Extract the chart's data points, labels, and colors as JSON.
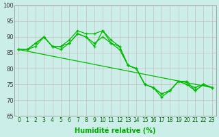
{
  "xlabel": "Humidité relative (%)",
  "background_color": "#cceee8",
  "grid_color": "#bbbbcc",
  "line_color": "#00bb00",
  "xlim_min": -0.5,
  "xlim_max": 23.5,
  "ylim": [
    65,
    100
  ],
  "yticks": [
    65,
    70,
    75,
    80,
    85,
    90,
    95,
    100
  ],
  "xticks": [
    0,
    1,
    2,
    3,
    4,
    5,
    6,
    7,
    8,
    9,
    10,
    11,
    12,
    13,
    14,
    15,
    16,
    17,
    18,
    19,
    20,
    21,
    22,
    23
  ],
  "series": [
    [
      86,
      86,
      88,
      90,
      87,
      87,
      89,
      92,
      91,
      91,
      92,
      89,
      87,
      81,
      80,
      75,
      74,
      72,
      73,
      76,
      75,
      74,
      75,
      74
    ],
    [
      86,
      86,
      88,
      90,
      87,
      87,
      88,
      91,
      90,
      88,
      90,
      88,
      86,
      81,
      80,
      75,
      74,
      72,
      73,
      76,
      76,
      73,
      75,
      74
    ],
    [
      86,
      86,
      87,
      90,
      87,
      86,
      88,
      91,
      90,
      87,
      92,
      88,
      87,
      81,
      80,
      75,
      74,
      71,
      73,
      76,
      75,
      73,
      75,
      74
    ],
    [
      86.0,
      85.48,
      84.96,
      84.43,
      83.91,
      83.39,
      82.87,
      82.35,
      81.83,
      81.3,
      80.78,
      80.26,
      79.74,
      79.22,
      78.7,
      78.17,
      77.65,
      77.13,
      76.61,
      76.09,
      75.57,
      75.04,
      74.52,
      74.0
    ]
  ]
}
